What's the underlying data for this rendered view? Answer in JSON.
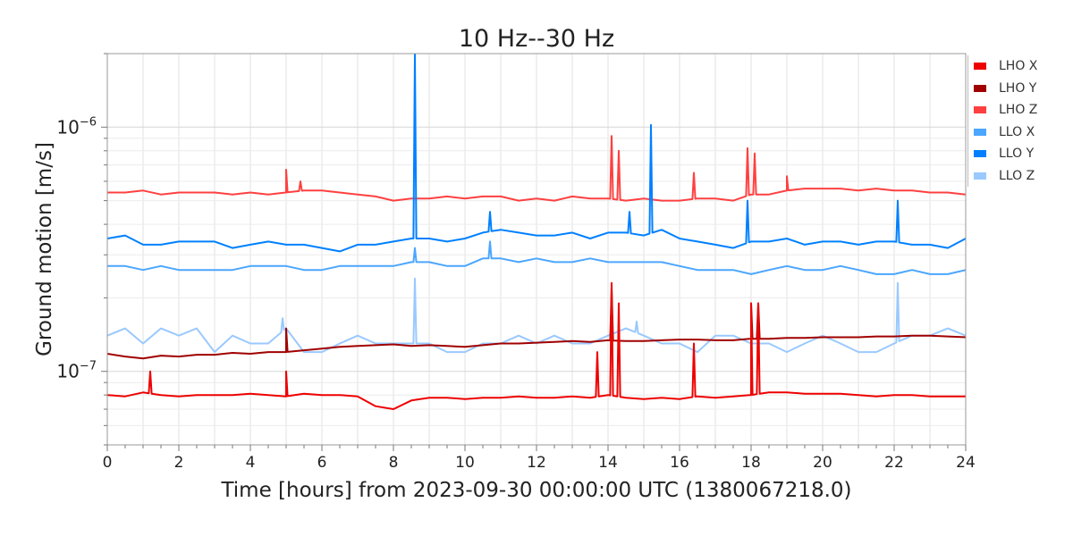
{
  "chart_data": {
    "type": "line",
    "title": "10 Hz--30 Hz",
    "xlabel": "Time [hours] from 2023-09-30 00:00:00 UTC (1380067218.0)",
    "ylabel": "Ground motion [m/s]",
    "xlim": [
      0,
      24
    ],
    "ylim": [
      5e-08,
      2e-06
    ],
    "yscale": "log",
    "grid": true,
    "legend_position": "right-outside",
    "x_ticks": [
      0,
      2,
      4,
      6,
      8,
      10,
      12,
      14,
      16,
      18,
      20,
      22,
      24
    ],
    "x_tick_labels": [
      "0",
      "2",
      "4",
      "6",
      "8",
      "10",
      "12",
      "14",
      "16",
      "18",
      "20",
      "22",
      "24"
    ],
    "y_ticks": [
      1e-06,
      1e-07
    ],
    "y_tick_labels": [
      {
        "base": "10",
        "exp": "−6"
      },
      {
        "base": "10",
        "exp": "−7"
      }
    ],
    "x_step_hours": 0.5,
    "values_scale": 1e-07,
    "series": [
      {
        "name": "LHO Z",
        "color": "#ff4040",
        "values": [
          5.4,
          5.4,
          5.5,
          5.3,
          5.4,
          5.4,
          5.4,
          5.3,
          5.4,
          5.3,
          5.4,
          5.5,
          5.5,
          5.4,
          5.3,
          5.2,
          5.0,
          5.1,
          5.1,
          5.2,
          5.1,
          5.2,
          5.2,
          5.0,
          5.1,
          5.0,
          5.2,
          5.1,
          5.1,
          5.0,
          5.1,
          5.0,
          5.0,
          5.1,
          5.1,
          5.0,
          5.3,
          5.3,
          5.5,
          5.6,
          5.6,
          5.6,
          5.5,
          5.6,
          5.5,
          5.5,
          5.4,
          5.4,
          5.3
        ],
        "spikes": [
          [
            5.0,
            6.7
          ],
          [
            5.4,
            6.0
          ],
          [
            14.1,
            9.2
          ],
          [
            14.3,
            8.0
          ],
          [
            16.4,
            6.5
          ],
          [
            17.9,
            8.2
          ],
          [
            18.1,
            7.8
          ],
          [
            19.0,
            6.3
          ]
        ]
      },
      {
        "name": "LLO Y",
        "color": "#0080ff",
        "values": [
          3.5,
          3.6,
          3.3,
          3.3,
          3.4,
          3.4,
          3.4,
          3.2,
          3.3,
          3.4,
          3.3,
          3.3,
          3.2,
          3.1,
          3.3,
          3.3,
          3.4,
          3.5,
          3.5,
          3.4,
          3.5,
          3.7,
          3.8,
          3.7,
          3.6,
          3.6,
          3.7,
          3.5,
          3.7,
          3.7,
          3.6,
          3.8,
          3.5,
          3.4,
          3.3,
          3.2,
          3.4,
          3.4,
          3.5,
          3.3,
          3.4,
          3.4,
          3.3,
          3.4,
          3.4,
          3.3,
          3.3,
          3.2,
          3.5
        ],
        "spikes": [
          [
            8.6,
            20
          ],
          [
            10.7,
            4.5
          ],
          [
            14.6,
            4.5
          ],
          [
            15.2,
            10.2
          ],
          [
            17.9,
            5.0
          ],
          [
            22.1,
            5.0
          ]
        ]
      },
      {
        "name": "LLO X",
        "color": "#4ba6ff",
        "values": [
          2.7,
          2.7,
          2.6,
          2.7,
          2.6,
          2.6,
          2.6,
          2.6,
          2.7,
          2.7,
          2.7,
          2.6,
          2.6,
          2.7,
          2.7,
          2.7,
          2.7,
          2.8,
          2.8,
          2.7,
          2.7,
          2.9,
          2.9,
          2.8,
          2.9,
          2.8,
          2.8,
          2.9,
          2.8,
          2.8,
          2.8,
          2.8,
          2.7,
          2.6,
          2.6,
          2.6,
          2.5,
          2.6,
          2.7,
          2.6,
          2.6,
          2.7,
          2.6,
          2.5,
          2.5,
          2.6,
          2.5,
          2.5,
          2.6
        ],
        "spikes": [
          [
            8.6,
            3.2
          ],
          [
            10.7,
            3.4
          ]
        ]
      },
      {
        "name": "LLO Z",
        "color": "#9ac9ff",
        "values": [
          1.4,
          1.5,
          1.3,
          1.5,
          1.4,
          1.5,
          1.2,
          1.4,
          1.3,
          1.3,
          1.5,
          1.2,
          1.2,
          1.3,
          1.4,
          1.3,
          1.3,
          1.3,
          1.3,
          1.2,
          1.2,
          1.3,
          1.3,
          1.4,
          1.3,
          1.4,
          1.3,
          1.3,
          1.4,
          1.5,
          1.4,
          1.3,
          1.3,
          1.2,
          1.4,
          1.4,
          1.3,
          1.3,
          1.2,
          1.3,
          1.4,
          1.3,
          1.2,
          1.2,
          1.3,
          1.4,
          1.4,
          1.5,
          1.4
        ],
        "spikes": [
          [
            4.9,
            1.65
          ],
          [
            8.6,
            2.4
          ],
          [
            14.8,
            1.6
          ],
          [
            22.1,
            2.3
          ]
        ]
      },
      {
        "name": "LHO Y",
        "color": "#a00000",
        "values": [
          1.18,
          1.15,
          1.13,
          1.16,
          1.15,
          1.17,
          1.17,
          1.19,
          1.18,
          1.2,
          1.2,
          1.22,
          1.24,
          1.26,
          1.27,
          1.28,
          1.29,
          1.27,
          1.28,
          1.27,
          1.26,
          1.28,
          1.3,
          1.3,
          1.31,
          1.32,
          1.33,
          1.32,
          1.34,
          1.33,
          1.33,
          1.34,
          1.35,
          1.35,
          1.34,
          1.34,
          1.36,
          1.36,
          1.37,
          1.37,
          1.38,
          1.38,
          1.38,
          1.39,
          1.39,
          1.4,
          1.4,
          1.39,
          1.38
        ],
        "spikes": [
          [
            5.0,
            1.5
          ],
          [
            14.1,
            2.2
          ],
          [
            18.0,
            1.9
          ],
          [
            18.2,
            1.9
          ]
        ]
      },
      {
        "name": "LHO X",
        "color": "#ee0000",
        "values": [
          0.8,
          0.79,
          0.82,
          0.8,
          0.79,
          0.8,
          0.8,
          0.8,
          0.81,
          0.8,
          0.79,
          0.81,
          0.8,
          0.8,
          0.79,
          0.72,
          0.7,
          0.76,
          0.78,
          0.78,
          0.77,
          0.78,
          0.78,
          0.79,
          0.78,
          0.78,
          0.79,
          0.78,
          0.8,
          0.78,
          0.77,
          0.78,
          0.77,
          0.79,
          0.78,
          0.79,
          0.8,
          0.82,
          0.82,
          0.81,
          0.81,
          0.81,
          0.8,
          0.79,
          0.8,
          0.8,
          0.79,
          0.79,
          0.79
        ],
        "spikes": [
          [
            1.2,
            1.0
          ],
          [
            5.0,
            1.0
          ],
          [
            13.7,
            1.2
          ],
          [
            14.1,
            2.3
          ],
          [
            14.3,
            1.9
          ],
          [
            16.4,
            1.3
          ],
          [
            18.0,
            1.9
          ],
          [
            18.2,
            1.9
          ]
        ]
      }
    ],
    "legend": [
      {
        "name": "LHO X",
        "color": "#ee0000"
      },
      {
        "name": "LHO Y",
        "color": "#a00000"
      },
      {
        "name": "LHO Z",
        "color": "#ff4040"
      },
      {
        "name": "LLO X",
        "color": "#4ba6ff"
      },
      {
        "name": "LLO Y",
        "color": "#0080ff"
      },
      {
        "name": "LLO Z",
        "color": "#9ac9ff"
      }
    ]
  }
}
